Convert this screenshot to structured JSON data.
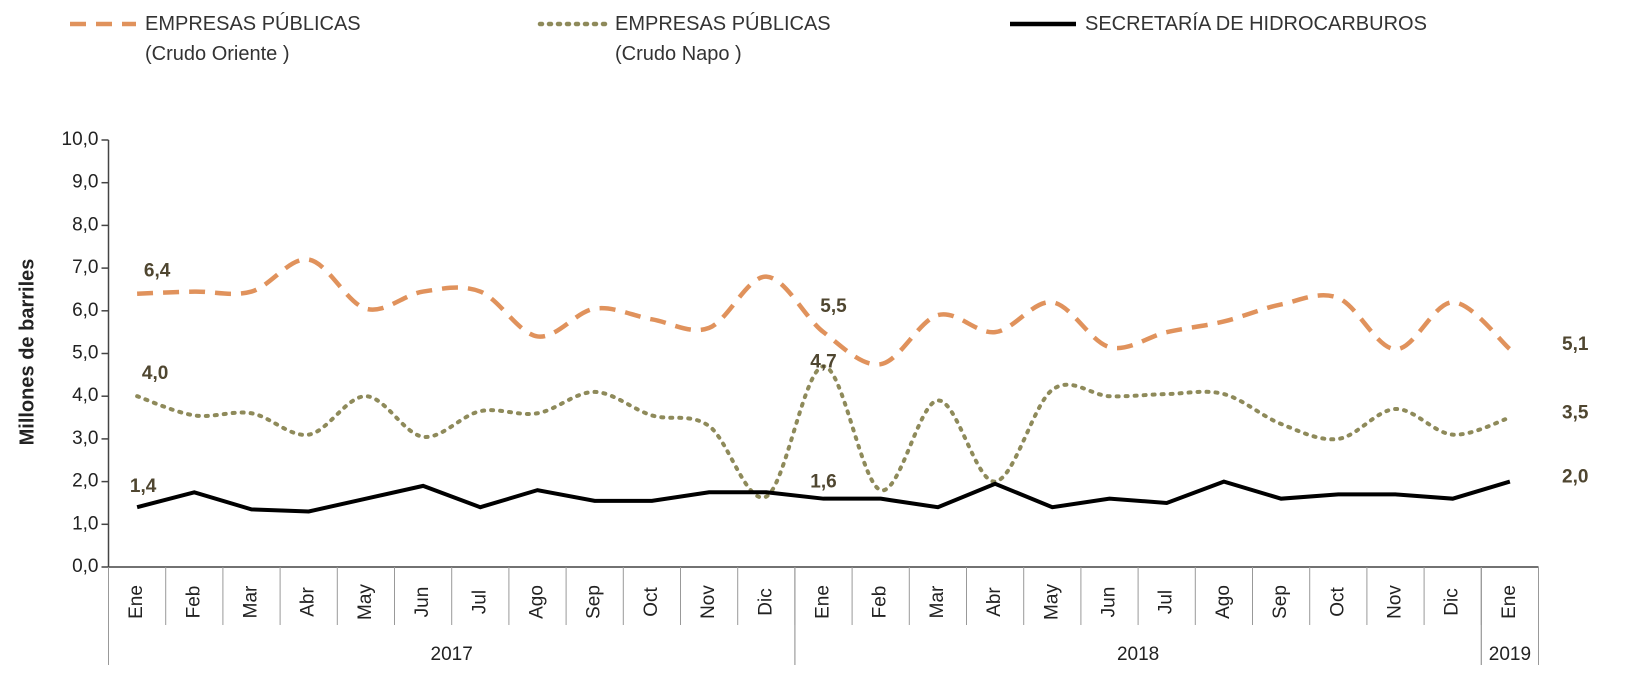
{
  "chart_data": {
    "type": "line",
    "y_label": "Millones de barriles",
    "categories": [
      "Ene",
      "Feb",
      "Mar",
      "Abr",
      "May",
      "Jun",
      "Jul",
      "Ago",
      "Sep",
      "Oct",
      "Nov",
      "Dic",
      "Ene",
      "Feb",
      "Mar",
      "Abr",
      "May",
      "Jun",
      "Jul",
      "Ago",
      "Sep",
      "Oct",
      "Nov",
      "Dic",
      "Ene"
    ],
    "groups": [
      {
        "name": "2017",
        "count": 12
      },
      {
        "name": "2018",
        "count": 12
      },
      {
        "name": "2019",
        "count": 1
      }
    ],
    "ylim": [
      0,
      10
    ],
    "yticks": [
      {
        "value": 0,
        "label": "0,0"
      },
      {
        "value": 1,
        "label": "1,0"
      },
      {
        "value": 2,
        "label": "2,0"
      },
      {
        "value": 3,
        "label": "3,0"
      },
      {
        "value": 4,
        "label": "4,0"
      },
      {
        "value": 5,
        "label": "5,0"
      },
      {
        "value": 6,
        "label": "6,0"
      },
      {
        "value": 7,
        "label": "7,0"
      },
      {
        "value": 8,
        "label": "8,0"
      },
      {
        "value": 9,
        "label": "9,0"
      },
      {
        "value": 10,
        "label": "10,0"
      }
    ],
    "series": [
      {
        "name": "EMPRESAS PÚBLICAS\n(Crudo Oriente )",
        "color": "#e0925c",
        "style": "dashed",
        "smooth": true,
        "values": [
          6.4,
          6.45,
          6.45,
          7.2,
          6.05,
          6.45,
          6.45,
          5.4,
          6.05,
          5.8,
          5.6,
          6.8,
          5.5,
          4.75,
          5.9,
          5.5,
          6.2,
          5.15,
          5.5,
          5.75,
          6.15,
          6.3,
          5.1,
          6.2,
          5.1
        ],
        "value_labels": [
          "6,4",
          null,
          null,
          null,
          null,
          null,
          null,
          null,
          null,
          null,
          null,
          null,
          "5,5",
          null,
          null,
          null,
          null,
          null,
          null,
          null,
          null,
          null,
          null,
          null,
          "5,1"
        ]
      },
      {
        "name": "EMPRESAS PÚBLICAS\n(Crudo Napo )",
        "color": "#8e8a5a",
        "style": "dotted",
        "smooth": true,
        "values": [
          4.0,
          3.55,
          3.6,
          3.1,
          4.0,
          3.05,
          3.65,
          3.6,
          4.1,
          3.55,
          3.3,
          1.65,
          4.7,
          1.8,
          3.9,
          2.0,
          4.15,
          4.0,
          4.05,
          4.05,
          3.35,
          3.0,
          3.7,
          3.1,
          3.5
        ],
        "value_labels": [
          "4,0",
          null,
          null,
          null,
          null,
          null,
          null,
          null,
          null,
          null,
          null,
          null,
          "4,7",
          null,
          null,
          null,
          null,
          null,
          null,
          null,
          null,
          null,
          null,
          null,
          "3,5"
        ]
      },
      {
        "name": "SECRETARÍA DE HIDROCARBUROS",
        "color": "#000000",
        "style": "solid",
        "smooth": false,
        "values": [
          1.4,
          1.75,
          1.35,
          1.3,
          1.6,
          1.9,
          1.4,
          1.8,
          1.55,
          1.55,
          1.75,
          1.75,
          1.6,
          1.6,
          1.4,
          1.95,
          1.4,
          1.6,
          1.5,
          2.0,
          1.6,
          1.7,
          1.7,
          1.6,
          2.0
        ],
        "value_labels": [
          "1,4",
          null,
          null,
          null,
          null,
          null,
          null,
          null,
          null,
          null,
          null,
          null,
          "1,6",
          null,
          null,
          null,
          null,
          null,
          null,
          null,
          null,
          null,
          null,
          null,
          "2,0"
        ]
      }
    ]
  }
}
